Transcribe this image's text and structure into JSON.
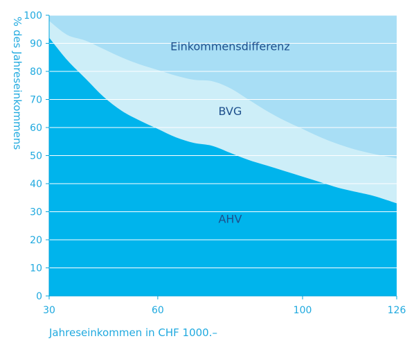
{
  "chart_data": {
    "type": "area",
    "stacked": true,
    "xlabel": "Jahreseinkommen in CHF 1000.–",
    "ylabel": "% des Jahreseinkommens",
    "xlim": [
      30,
      126
    ],
    "ylim": [
      0,
      100
    ],
    "x_ticks": [
      30,
      60,
      100,
      126
    ],
    "y_ticks": [
      0,
      10,
      20,
      30,
      40,
      50,
      60,
      70,
      80,
      90,
      100
    ],
    "x_tick_labels": [
      "30",
      "60",
      "100",
      "126"
    ],
    "y_tick_labels": [
      "0",
      "10",
      "20",
      "30",
      "40",
      "50",
      "60",
      "70",
      "80",
      "90",
      "100"
    ],
    "grid": true,
    "x": [
      30,
      35,
      40,
      45,
      50,
      55,
      60,
      65,
      70,
      75,
      80,
      85,
      90,
      95,
      100,
      105,
      110,
      115,
      120,
      126
    ],
    "series": [
      {
        "name": "AHV",
        "color": "#00b4ec",
        "values": [
          92,
          84,
          77.5,
          71,
          66,
          62.5,
          59.5,
          56.5,
          54.5,
          53.5,
          51,
          48.5,
          46.5,
          44.5,
          42.5,
          40.5,
          38.5,
          37,
          35.5,
          33
        ]
      },
      {
        "name": "BVG",
        "color": "#cdeef8",
        "values": [
          98,
          93,
          91,
          88,
          85,
          82.5,
          80.5,
          78.5,
          77,
          76.5,
          74,
          70,
          66,
          62.5,
          59.5,
          56.5,
          54,
          52,
          50.5,
          49
        ]
      },
      {
        "name": "Einkommensdifferenz",
        "color": "#a8def5",
        "values": [
          100,
          100,
          100,
          100,
          100,
          100,
          100,
          100,
          100,
          100,
          100,
          100,
          100,
          100,
          100,
          100,
          100,
          100,
          100,
          100
        ]
      }
    ],
    "annotations": [
      {
        "text": "Einkommensdifferenz",
        "x": 80,
        "y": 87.5
      },
      {
        "text": "BVG",
        "x": 80,
        "y": 64.5
      },
      {
        "text": "AHV",
        "x": 80,
        "y": 26
      }
    ],
    "colors": {
      "axis_text": "#1fa9df",
      "grid": "#ffffff",
      "annotation_text": "#1d4f8c"
    }
  }
}
